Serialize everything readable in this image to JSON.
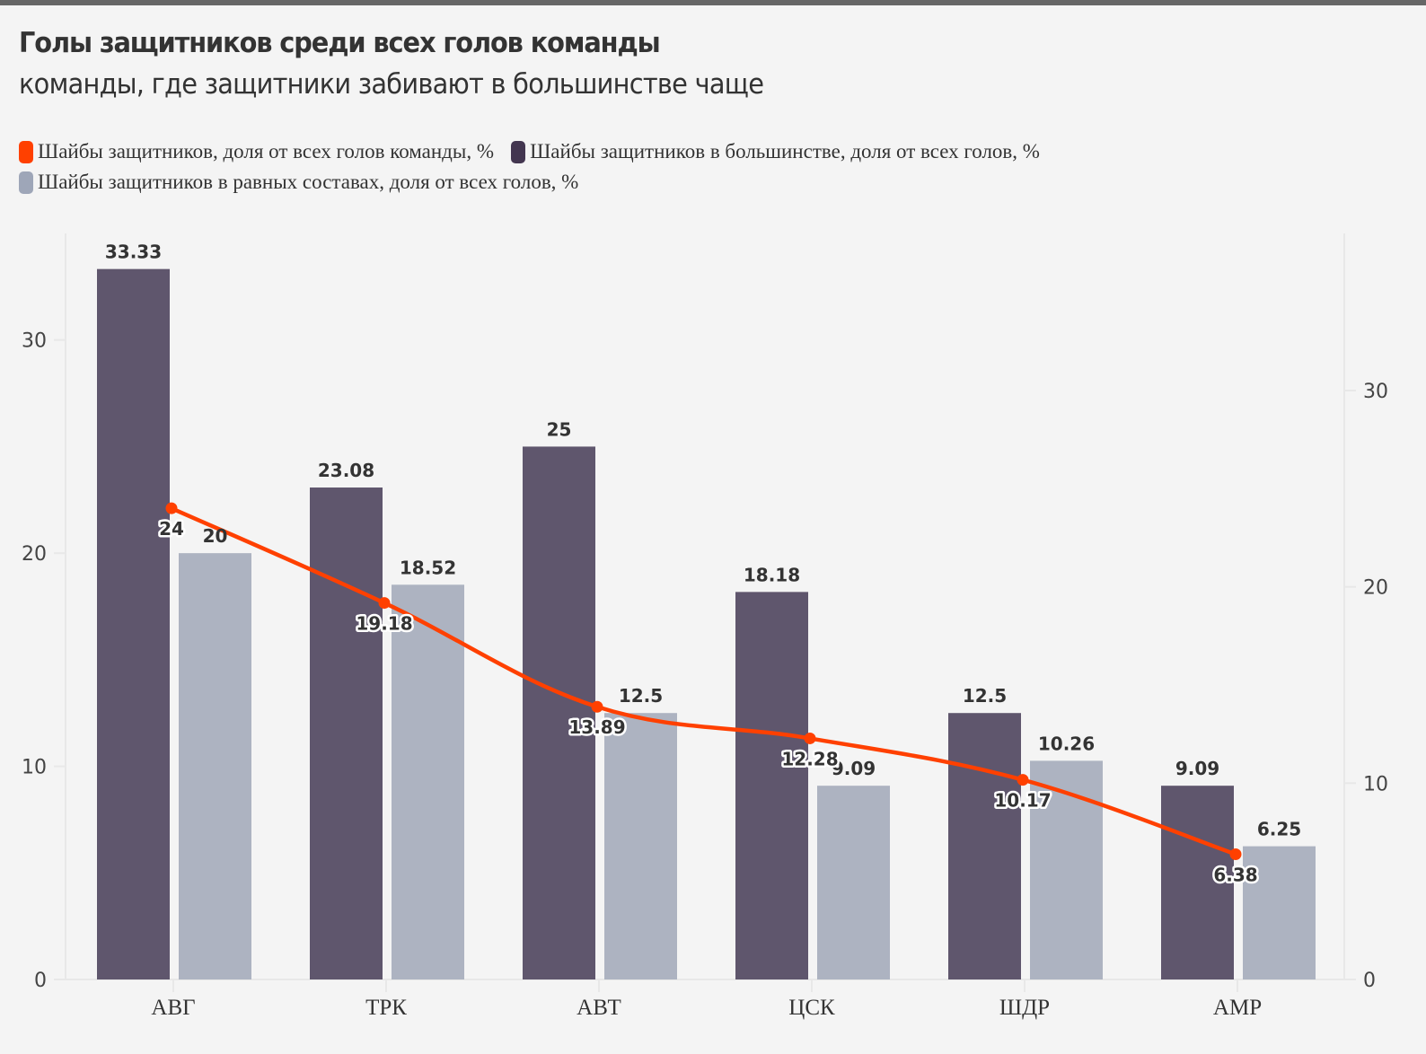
{
  "header": {
    "title": "Голы защитников среди всех голов команды",
    "subtitle": "команды, где защитники забивают в большинстве чаще"
  },
  "chart_data": {
    "type": "bar",
    "title": "Голы защитников среди всех голов команды",
    "subtitle": "команды, где защитники забивают в большинстве чаще",
    "categories": [
      "АВГ",
      "ТРК",
      "АВТ",
      "ЦСК",
      "ШДР",
      "АМР"
    ],
    "series": [
      {
        "name": "Шайбы защитников в большинстве, доля от всех голов, %",
        "type": "bar",
        "axis": "left",
        "color": "#5f566d",
        "legend_color": "#433650",
        "values": [
          33.33,
          23.08,
          25,
          18.18,
          12.5,
          9.09
        ],
        "labels": [
          "33.33",
          "23.08",
          "25",
          "18.18",
          "12.5",
          "9.09"
        ]
      },
      {
        "name": "Шайбы защитников в равных составах, доля от всех голов, %",
        "type": "bar",
        "axis": "left",
        "color": "#adb3c1",
        "legend_color": "#9ea6b8",
        "values": [
          20,
          18.52,
          12.5,
          9.09,
          10.26,
          6.25
        ],
        "labels": [
          "20",
          "18.52",
          "12.5",
          "9.09",
          "10.26",
          "6.25"
        ]
      },
      {
        "name": "Шайбы защитников, доля от всех голов команды, %",
        "type": "line",
        "axis": "right",
        "color": "#ff4000",
        "values": [
          24,
          19.18,
          13.89,
          12.28,
          10.17,
          6.38
        ],
        "labels": [
          "24",
          "19.18",
          "13.89",
          "12.28",
          "10.17",
          "6.38"
        ]
      }
    ],
    "legend": {
      "placement": "top-left",
      "order": [
        2,
        0,
        1
      ]
    },
    "left_axis": {
      "ylim": [
        0,
        35
      ],
      "ticks": [
        "0",
        "10",
        "20",
        "30"
      ],
      "tick_values": [
        0,
        10,
        20,
        30
      ]
    },
    "right_axis": {
      "ylim": [
        0,
        38
      ],
      "ticks": [
        "0",
        "10",
        "20",
        "30"
      ],
      "tick_values": [
        0,
        10,
        20,
        30
      ]
    },
    "xlabel": "",
    "ylabel": "",
    "grid": false
  }
}
